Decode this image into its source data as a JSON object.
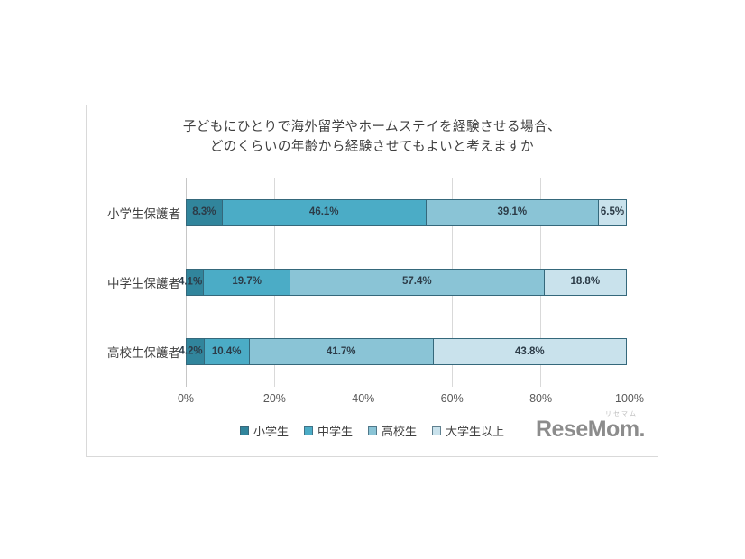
{
  "title": {
    "line1": "子どもにひとりで海外留学やホームステイを経験させる場合、",
    "line2": "どのくらいの年齢から経験させてもよいと考えますか"
  },
  "chart_data": {
    "type": "bar",
    "variant": "horizontal-stacked",
    "categories": [
      "小学生保護者",
      "中学生保護者",
      "高校生保護者"
    ],
    "series": [
      {
        "name": "小学生",
        "color": "#31859C",
        "values": [
          8.3,
          4.1,
          4.2
        ]
      },
      {
        "name": "中学生",
        "color": "#4BACC6",
        "values": [
          46.1,
          19.7,
          10.4
        ]
      },
      {
        "name": "高校生",
        "color": "#8AC4D6",
        "values": [
          39.1,
          57.4,
          41.7
        ]
      },
      {
        "name": "大学生以上",
        "color": "#C9E2EC",
        "values": [
          6.5,
          18.8,
          43.8
        ]
      }
    ],
    "value_suffix": "%",
    "x_ticks": [
      "0%",
      "20%",
      "40%",
      "60%",
      "80%",
      "100%"
    ],
    "xlim": [
      0,
      100
    ],
    "grid": true,
    "legend_position": "bottom"
  },
  "logo": {
    "name": "ReseMom.",
    "ruby": "リセマム"
  },
  "colors": {
    "grid": "#d9d9d9",
    "segment_border": "#35687b",
    "panel_border": "#d9d9d9",
    "label_text": "#2c3b47"
  }
}
